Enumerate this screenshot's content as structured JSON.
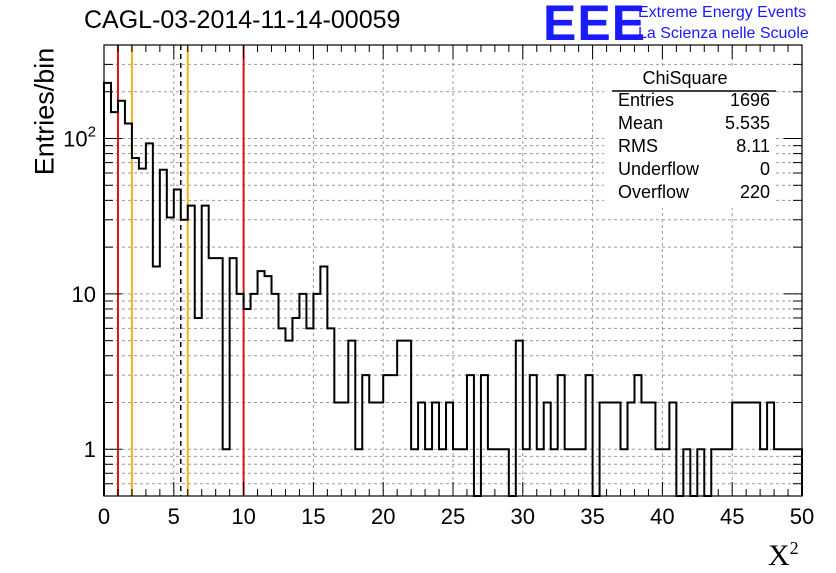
{
  "title": "CAGL-03-2014-11-14-00059",
  "logo": {
    "mark": "EEE",
    "line1": "Extreme Energy Events",
    "line2": "La Scienza nelle Scuole",
    "color": "#1a1aff"
  },
  "stats_box": {
    "name": "ChiSquare",
    "rows": [
      {
        "label": "Entries",
        "value": "1696"
      },
      {
        "label": "Mean",
        "value": "5.535"
      },
      {
        "label": "RMS",
        "value": "8.11"
      },
      {
        "label": "Underflow",
        "value": "0"
      },
      {
        "label": "Overflow",
        "value": "220"
      }
    ]
  },
  "chart_data": {
    "type": "histogram",
    "title": "CAGL-03-2014-11-14-00059",
    "xlabel": "X²",
    "ylabel": "Entries/bin",
    "xlim": [
      0,
      50
    ],
    "ylim": [
      0.5,
      400
    ],
    "yscale": "log",
    "grid": true,
    "bin_width": 0.5,
    "x_ticks": [
      "0",
      "5",
      "10",
      "15",
      "20",
      "25",
      "30",
      "35",
      "40",
      "45",
      "50"
    ],
    "y_ticks": [
      {
        "value": 1,
        "label": "1"
      },
      {
        "value": 10,
        "label": "10"
      },
      {
        "value": 100,
        "label": "10^2"
      }
    ],
    "counts": [
      228,
      148,
      175,
      125,
      75,
      64,
      93,
      15,
      63,
      31,
      47,
      30,
      37,
      7,
      37,
      17,
      17,
      1,
      17,
      10,
      8,
      10,
      14,
      13,
      10,
      6,
      5,
      7,
      10,
      6,
      10,
      15,
      6,
      2,
      2,
      5,
      1,
      3,
      2,
      2,
      3,
      3,
      5,
      5,
      1,
      2,
      1,
      2,
      1,
      2,
      1,
      1,
      3,
      0.5,
      3,
      1,
      1,
      1,
      0.5,
      5,
      1,
      3,
      1,
      2,
      1,
      3,
      1,
      1,
      1,
      3,
      0.5,
      2,
      2,
      2,
      1,
      2,
      3,
      2,
      2,
      1,
      1,
      2,
      0.5,
      1,
      0.5,
      1,
      0.5,
      1,
      1,
      1,
      2,
      2,
      2,
      2,
      1,
      2,
      1,
      1,
      1,
      1
    ],
    "vertical_lines": [
      {
        "x": 1.0,
        "color": "#dd1111",
        "style": "solid"
      },
      {
        "x": 2.0,
        "color": "#f2b21a",
        "style": "solid"
      },
      {
        "x": 5.5,
        "color": "#000000",
        "style": "dashed"
      },
      {
        "x": 6.0,
        "color": "#f2b21a",
        "style": "solid"
      },
      {
        "x": 10.0,
        "color": "#dd1111",
        "style": "solid"
      }
    ]
  }
}
